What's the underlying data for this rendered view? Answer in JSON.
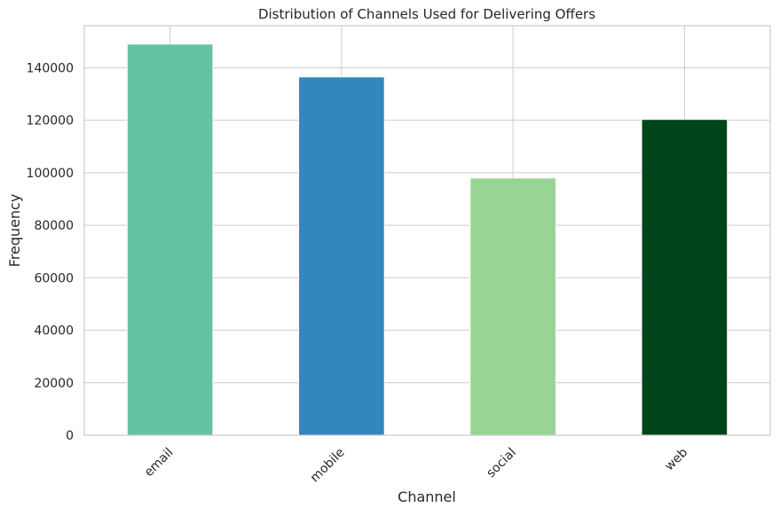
{
  "chart_data": {
    "type": "bar",
    "title": "Distribution of Channels Used for Delivering Offers",
    "xlabel": "Channel",
    "ylabel": "Frequency",
    "categories": [
      "email",
      "mobile",
      "social",
      "web"
    ],
    "values": [
      149000,
      136500,
      98000,
      120300
    ],
    "colors": [
      "#66c2a5",
      "#3288bd",
      "#98d594",
      "#00441b"
    ],
    "ylim": [
      0,
      156000
    ],
    "yticks": [
      0,
      20000,
      40000,
      60000,
      80000,
      100000,
      120000,
      140000
    ],
    "ytick_labels": [
      "0",
      "20000",
      "40000",
      "60000",
      "80000",
      "100000",
      "120000",
      "140000"
    ],
    "grid": true,
    "legend": false,
    "xtick_rotation": 45
  }
}
